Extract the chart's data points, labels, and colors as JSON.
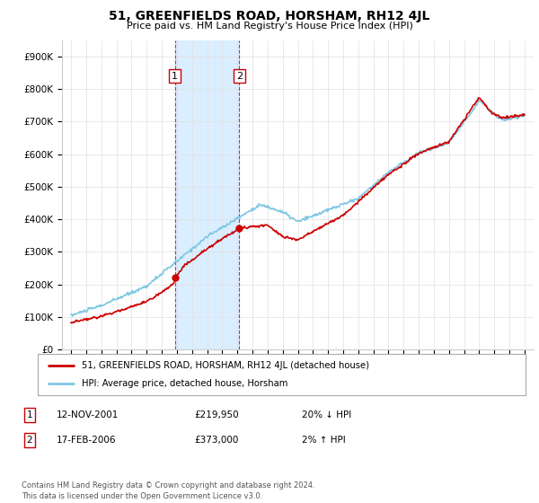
{
  "title": "51, GREENFIELDS ROAD, HORSHAM, RH12 4JL",
  "subtitle": "Price paid vs. HM Land Registry's House Price Index (HPI)",
  "ylim": [
    0,
    950000
  ],
  "yticks": [
    0,
    100000,
    200000,
    300000,
    400000,
    500000,
    600000,
    700000,
    800000,
    900000
  ],
  "ytick_labels": [
    "£0",
    "£100K",
    "£200K",
    "£300K",
    "£400K",
    "£500K",
    "£600K",
    "£700K",
    "£800K",
    "£900K"
  ],
  "sale1_date": 2001.87,
  "sale1_price": 219950,
  "sale2_date": 2006.12,
  "sale2_price": 373000,
  "hpi_color": "#7ec8e3",
  "price_color": "#cc0000",
  "shade_color": "#daeeff",
  "legend_label_price": "51, GREENFIELDS ROAD, HORSHAM, RH12 4JL (detached house)",
  "legend_label_hpi": "HPI: Average price, detached house, Horsham",
  "table_row1": [
    "1",
    "12-NOV-2001",
    "£219,950",
    "20% ↓ HPI"
  ],
  "table_row2": [
    "2",
    "17-FEB-2006",
    "£373,000",
    "2% ↑ HPI"
  ],
  "footnote": "Contains HM Land Registry data © Crown copyright and database right 2024.\nThis data is licensed under the Open Government Licence v3.0.",
  "background_color": "#ffffff",
  "grid_color": "#e0e0e0"
}
